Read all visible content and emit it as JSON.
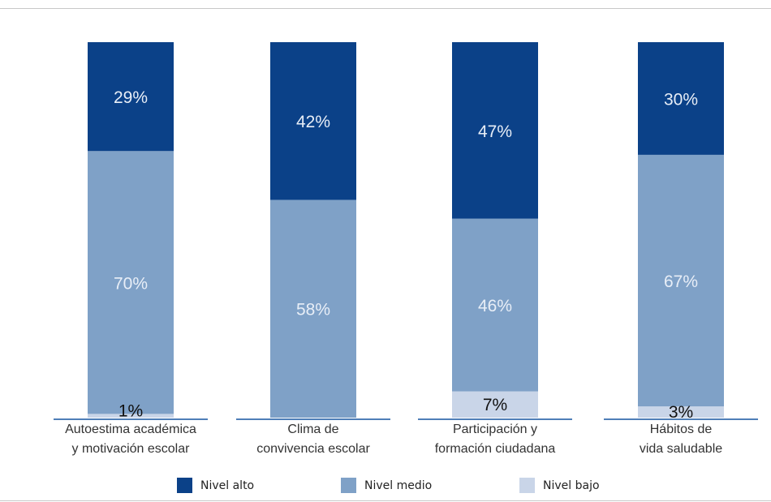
{
  "chart_data": {
    "type": "bar",
    "stacked": true,
    "normalized_percent": true,
    "categories": [
      [
        "Autoestima académica",
        "y motivación escolar"
      ],
      [
        "Clima de",
        "convivencia escolar"
      ],
      [
        "Participación y",
        "formación ciudadana"
      ],
      [
        "Hábitos de",
        "vida saludable"
      ]
    ],
    "series": [
      {
        "name": "Nivel bajo",
        "values": [
          1,
          0,
          7,
          3
        ],
        "labels": [
          "1%",
          "",
          "7%",
          "3%"
        ],
        "color": "#c9d5e8"
      },
      {
        "name": "Nivel medio",
        "values": [
          70,
          58,
          46,
          67
        ],
        "labels": [
          "70%",
          "58%",
          "46%",
          "67%"
        ],
        "color": "#7fa1c7"
      },
      {
        "name": "Nivel alto",
        "values": [
          29,
          42,
          47,
          30
        ],
        "labels": [
          "29%",
          "42%",
          "47%",
          "30%"
        ],
        "color": "#0b4188"
      }
    ],
    "ylim": [
      0,
      100
    ],
    "grid": false,
    "legend_position": "bottom",
    "legend_order": [
      "Nivel alto",
      "Nivel medio",
      "Nivel bajo"
    ],
    "baseline_color": "#4f7fb8",
    "label_color_light": "#e8eef7",
    "label_color_dark": "#111111"
  }
}
